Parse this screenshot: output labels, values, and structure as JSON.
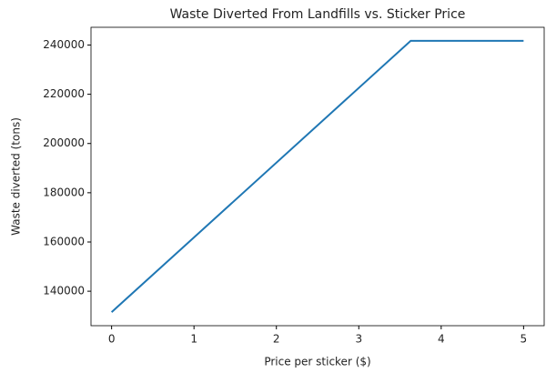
{
  "chart_data": {
    "type": "line",
    "title": "Waste Diverted From Landfills vs. Sticker Price",
    "x_label": "Price per sticker ($)",
    "y_label": "Waste diverted (tons)",
    "x": [
      0,
      3.63,
      5
    ],
    "series": [
      {
        "name": "Waste diverted",
        "color": "#1f77b4",
        "values": [
          131500,
          241700,
          241700
        ]
      }
    ],
    "xlim": [
      -0.25,
      5.25
    ],
    "xticks": [
      0,
      1,
      2,
      3,
      4,
      5
    ],
    "ylim": [
      126000,
      247200
    ],
    "yticks": [
      140000,
      160000,
      180000,
      200000,
      220000,
      240000
    ],
    "grid": false
  }
}
